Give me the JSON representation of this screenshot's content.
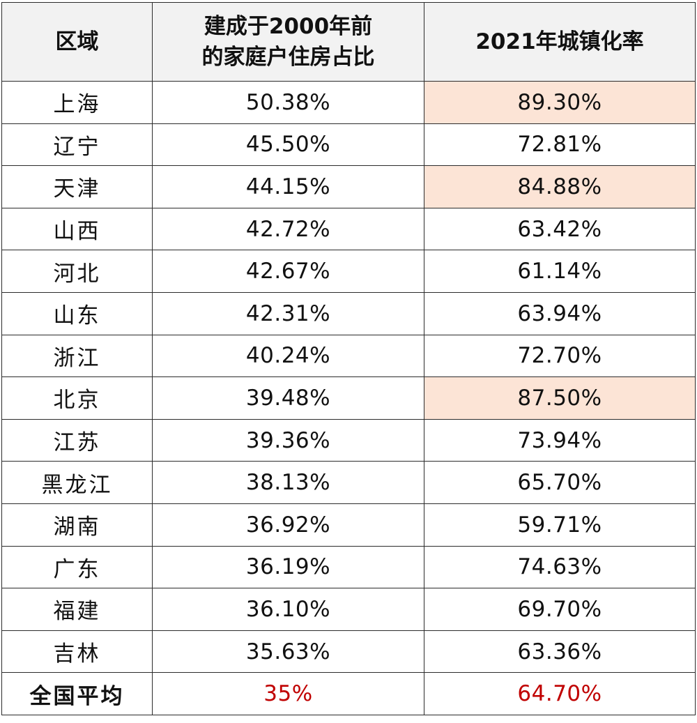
{
  "headers": {
    "region": "区域",
    "housing_line1": "建成于2000年前",
    "housing_line2": "的家庭户住房占比",
    "urban": "2021年城镇化率"
  },
  "highlight_color": "#fce4d6",
  "average_text_color": "#c00000",
  "rows": [
    {
      "region": "上海",
      "housing": "50.38%",
      "urban": "89.30%",
      "highlight": true
    },
    {
      "region": "辽宁",
      "housing": "45.50%",
      "urban": "72.81%",
      "highlight": false
    },
    {
      "region": "天津",
      "housing": "44.15%",
      "urban": "84.88%",
      "highlight": true
    },
    {
      "region": "山西",
      "housing": "42.72%",
      "urban": "63.42%",
      "highlight": false
    },
    {
      "region": "河北",
      "housing": "42.67%",
      "urban": "61.14%",
      "highlight": false
    },
    {
      "region": "山东",
      "housing": "42.31%",
      "urban": "63.94%",
      "highlight": false
    },
    {
      "region": "浙江",
      "housing": "40.24%",
      "urban": "72.70%",
      "highlight": false
    },
    {
      "region": "北京",
      "housing": "39.48%",
      "urban": "87.50%",
      "highlight": true
    },
    {
      "region": "江苏",
      "housing": "39.36%",
      "urban": "73.94%",
      "highlight": false
    },
    {
      "region": "黑龙江",
      "housing": "38.13%",
      "urban": "65.70%",
      "highlight": false
    },
    {
      "region": "湖南",
      "housing": "36.92%",
      "urban": "59.71%",
      "highlight": false
    },
    {
      "region": "广东",
      "housing": "36.19%",
      "urban": "74.63%",
      "highlight": false
    },
    {
      "region": "福建",
      "housing": "36.10%",
      "urban": "69.70%",
      "highlight": false
    },
    {
      "region": "吉林",
      "housing": "35.63%",
      "urban": "63.36%",
      "highlight": false
    }
  ],
  "average": {
    "region": "全国平均",
    "housing": "35%",
    "urban": "64.70%"
  }
}
